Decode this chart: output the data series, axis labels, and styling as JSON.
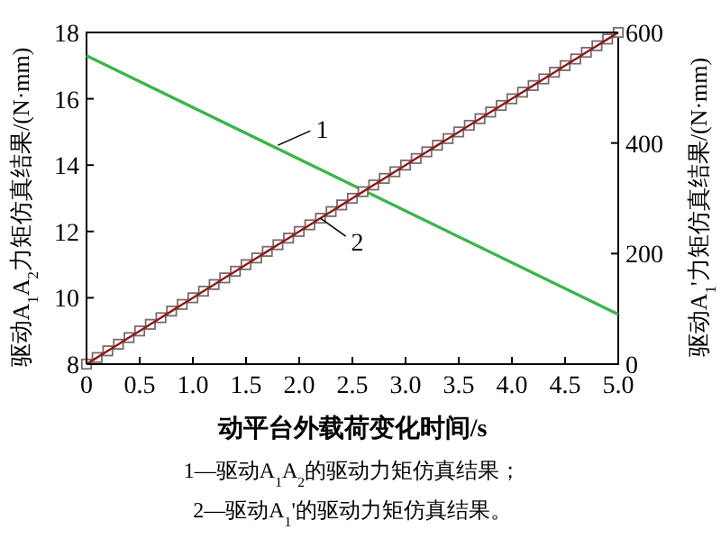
{
  "chart_data": {
    "type": "line",
    "xlabel": "动平台外载荷变化时间/s",
    "ylabel": "驱动A$_{1}$A$_{2}$力矩仿真结果/(N·mm)",
    "y2label": "驱动A$_{1}$'力矩仿真结果/(N·mm)",
    "xlim": [
      0,
      5
    ],
    "xticks": [
      0,
      {
        "value": 0.5,
        "label": "0.5"
      },
      {
        "value": 1,
        "label": "1.0"
      },
      {
        "value": 1.5,
        "label": "1.5"
      },
      {
        "value": 2,
        "label": "2.0"
      },
      {
        "value": 2.5,
        "label": "2.5"
      },
      {
        "value": 3,
        "label": "3.0"
      },
      {
        "value": 3.5,
        "label": "3.5"
      },
      {
        "value": 4,
        "label": "4.0"
      },
      {
        "value": 4.5,
        "label": "4.5"
      },
      {
        "value": 5,
        "label": "5.0"
      }
    ],
    "ylim": [
      8,
      18
    ],
    "yticks": [
      8,
      10,
      12,
      14,
      16,
      18
    ],
    "y2lim": [
      0,
      600
    ],
    "y2ticks": [
      0,
      200,
      400,
      600
    ],
    "series": [
      {
        "color": "#3cb54a",
        "marker": "none",
        "x": [
          0,
          5
        ],
        "values": [
          17.3,
          9.5
        ]
      },
      {
        "color": "#8b1a1a",
        "marker": "square",
        "axis": "y2",
        "x": [
          0,
          0.1,
          0.2,
          0.3,
          0.4,
          0.5,
          0.6,
          0.7,
          0.8,
          0.9,
          1,
          1.1,
          1.2,
          1.3,
          1.4,
          1.5,
          1.6,
          1.7,
          1.8,
          1.9,
          2,
          2.1,
          2.2,
          2.3,
          2.4,
          2.5,
          2.6,
          2.7,
          2.8,
          2.9,
          3,
          3.1,
          3.2,
          3.3,
          3.4,
          3.5,
          3.6,
          3.7,
          3.8,
          3.9,
          4,
          4.1,
          4.2,
          4.3,
          4.4,
          4.5,
          4.6,
          4.7,
          4.8,
          4.9,
          5
        ],
        "values": [
          0,
          12,
          24,
          36,
          48,
          60,
          72,
          84,
          96,
          108,
          120,
          132,
          144,
          156,
          168,
          180,
          192,
          204,
          216,
          228,
          240,
          252,
          264,
          276,
          288,
          300,
          312,
          324,
          336,
          348,
          360,
          372,
          384,
          396,
          408,
          420,
          432,
          444,
          456,
          468,
          480,
          492,
          504,
          516,
          528,
          540,
          552,
          564,
          576,
          588,
          600
        ]
      }
    ],
    "annotations": [
      {
        "text": "1",
        "x": 1.8,
        "y": 14.6
      },
      {
        "text": "2",
        "x": 2.2,
        "y": 12.4
      },
      "1—驱动A$_{1}$A$_{2}$的驱动力矩仿真结果；",
      "2—驱动A$_{1}$'的驱动力矩仿真结果。"
    ],
    "grid": false
  }
}
